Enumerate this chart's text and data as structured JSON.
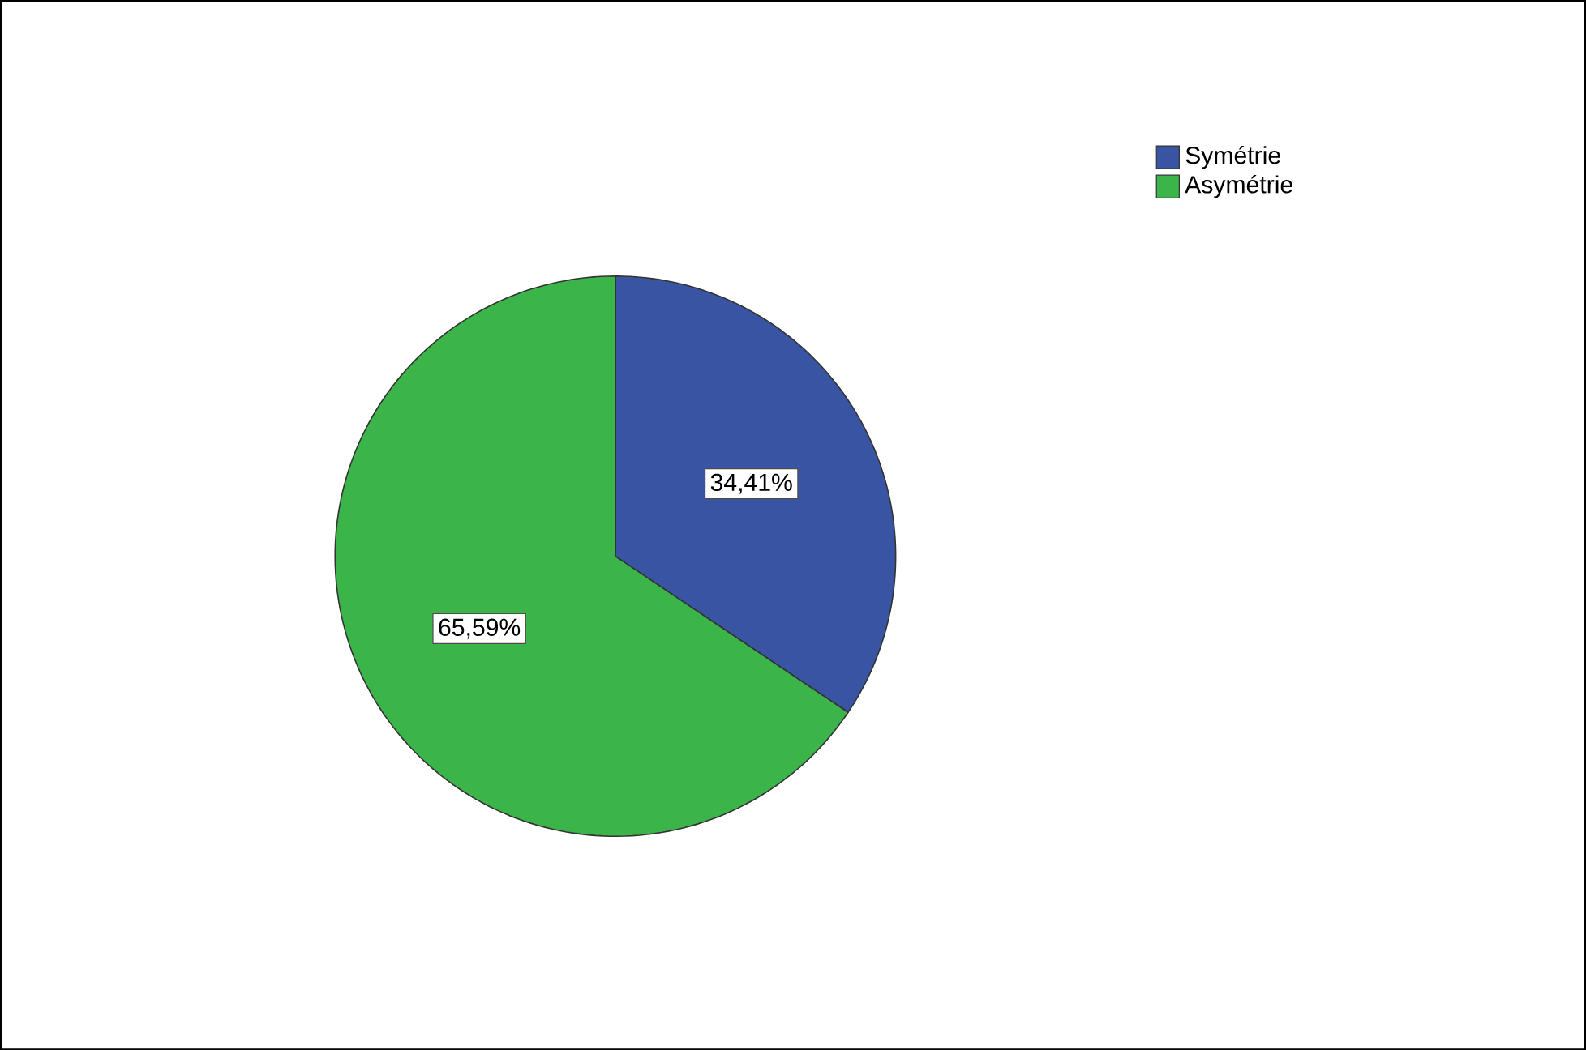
{
  "chart_data": {
    "type": "pie",
    "categories": [
      "Symétrie",
      "Asymétrie"
    ],
    "values": [
      34.41,
      65.59
    ],
    "colors": [
      "#3a54a4",
      "#3bb54a"
    ],
    "value_labels": [
      "34,41%",
      "65,59%"
    ],
    "legend": "top right"
  }
}
